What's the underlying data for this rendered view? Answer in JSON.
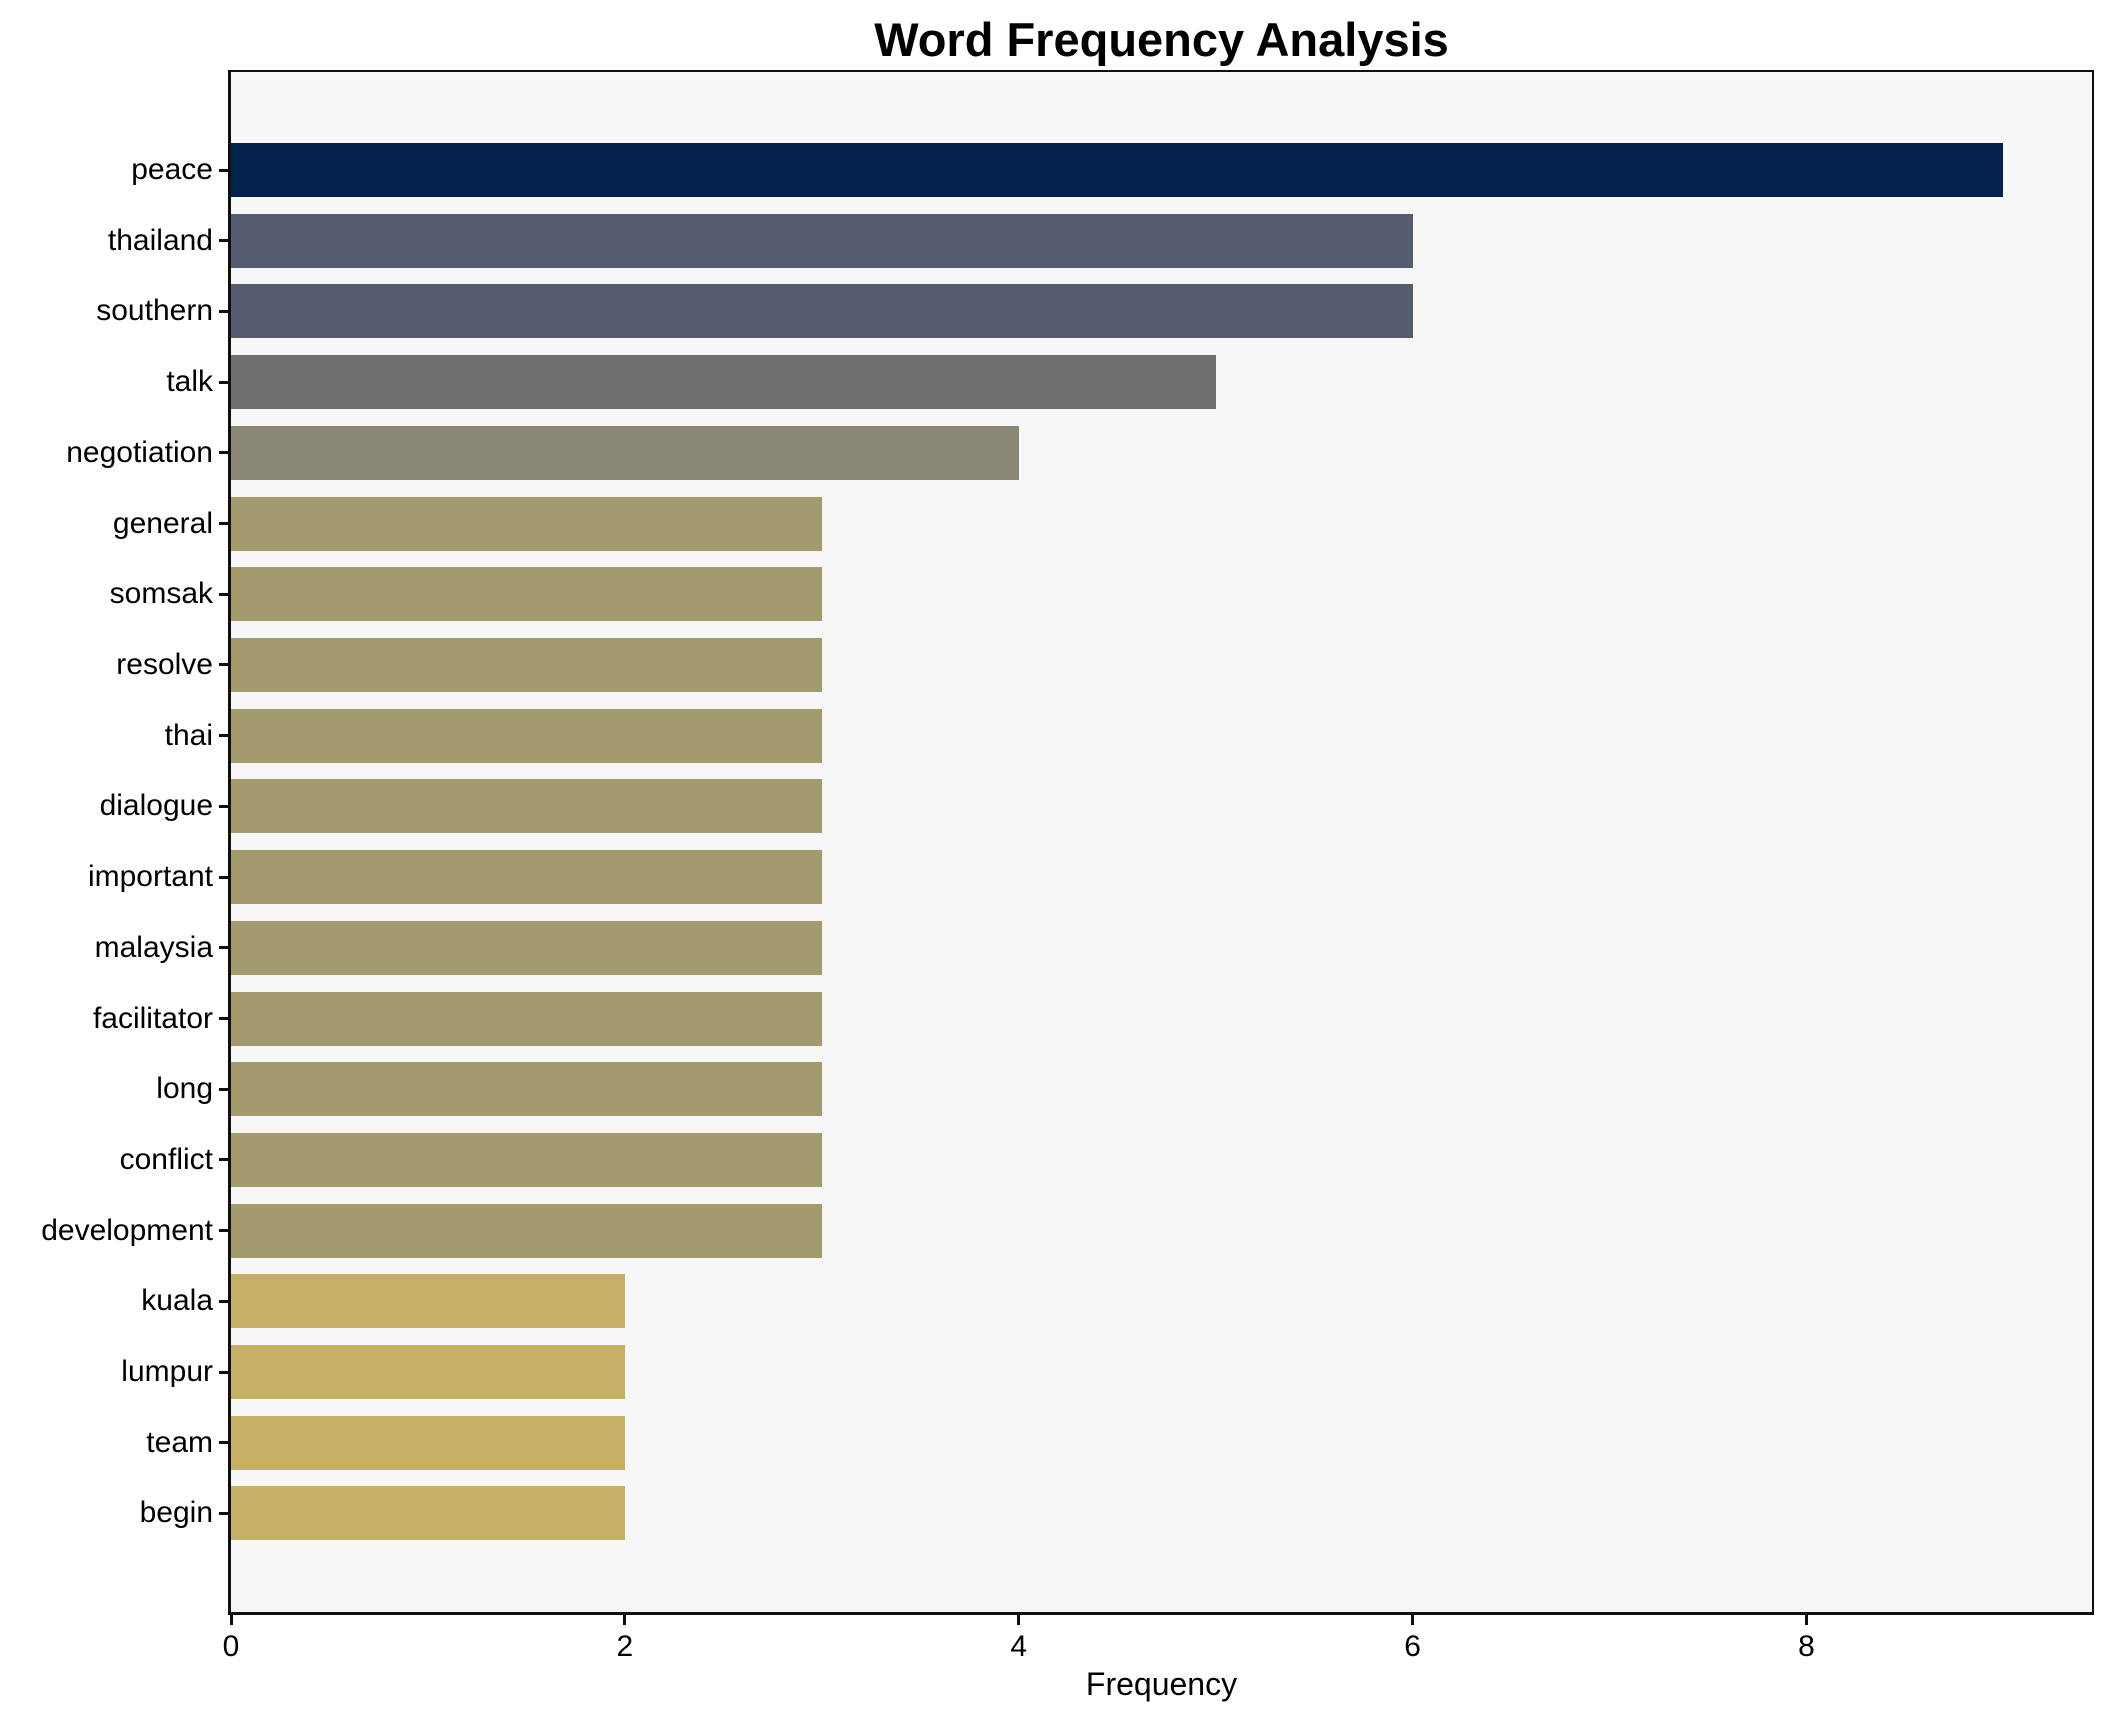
{
  "chart_data": {
    "type": "bar",
    "orientation": "horizontal",
    "title": "Word Frequency Analysis",
    "xlabel": "Frequency",
    "ylabel": "",
    "categories": [
      "peace",
      "thailand",
      "southern",
      "talk",
      "negotiation",
      "general",
      "somsak",
      "resolve",
      "thai",
      "dialogue",
      "important",
      "malaysia",
      "facilitator",
      "long",
      "conflict",
      "development",
      "kuala",
      "lumpur",
      "team",
      "begin"
    ],
    "values": [
      9,
      6,
      6,
      5,
      4,
      3,
      3,
      3,
      3,
      3,
      3,
      3,
      3,
      3,
      3,
      3,
      2,
      2,
      2,
      2
    ],
    "bar_colors": [
      "#032250",
      "#565c6f",
      "#565c6f",
      "#6f7072",
      "#8a8875",
      "#a39a6e",
      "#a39a6e",
      "#a39a6e",
      "#a39a6e",
      "#a39a6e",
      "#a39a6e",
      "#a39a6e",
      "#a39a6e",
      "#a39a6e",
      "#a39a6e",
      "#a39a6e",
      "#c4b166",
      "#c4b166",
      "#c4b166",
      "#c4b166"
    ],
    "xticks": [
      0,
      2,
      4,
      6,
      8
    ],
    "xlim": [
      0,
      9.45
    ],
    "grid": false,
    "legend": null,
    "colors": {
      "plot_background": "#f7f7f7",
      "figure_background": "#ffffff",
      "spine": "#0f0f0f",
      "text": "#000000"
    }
  }
}
